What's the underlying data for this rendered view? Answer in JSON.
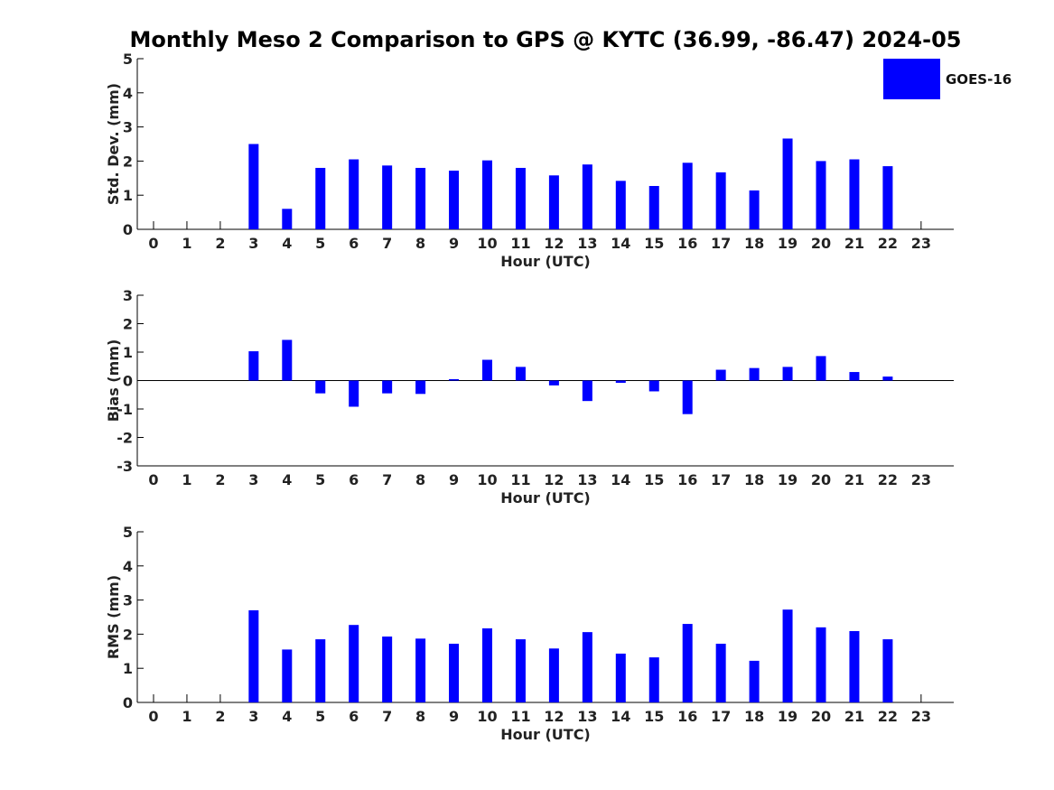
{
  "figure_title": "Monthly Meso 2 Comparison to GPS @ KYTC (36.99, -86.47) 2024-05",
  "legend": {
    "label": "GOES-16",
    "color": "#0000ff"
  },
  "chart_data": [
    {
      "type": "bar",
      "ylabel": "Std. Dev. (mm)",
      "xlabel": "Hour (UTC)",
      "ylim": [
        0,
        5
      ],
      "yticks": [
        0,
        1,
        2,
        3,
        4,
        5
      ],
      "categories": [
        "0",
        "1",
        "2",
        "3",
        "4",
        "5",
        "6",
        "7",
        "8",
        "9",
        "10",
        "11",
        "12",
        "13",
        "14",
        "15",
        "16",
        "17",
        "18",
        "19",
        "20",
        "21",
        "22",
        "23"
      ],
      "series": [
        {
          "name": "GOES-16",
          "color": "#0000ff",
          "values": [
            null,
            null,
            null,
            2.5,
            0.6,
            1.8,
            2.05,
            1.87,
            1.8,
            1.72,
            2.02,
            1.8,
            1.58,
            1.9,
            1.42,
            1.27,
            1.95,
            1.67,
            1.14,
            2.66,
            2.0,
            2.05,
            1.85,
            null
          ]
        }
      ]
    },
    {
      "type": "bar",
      "ylabel": "Bias (mm)",
      "xlabel": "Hour (UTC)",
      "ylim": [
        -3,
        3
      ],
      "yticks": [
        -3,
        -2,
        -1,
        0,
        1,
        2,
        3
      ],
      "baseline": 0,
      "categories": [
        "0",
        "1",
        "2",
        "3",
        "4",
        "5",
        "6",
        "7",
        "8",
        "9",
        "10",
        "11",
        "12",
        "13",
        "14",
        "15",
        "16",
        "17",
        "18",
        "19",
        "20",
        "21",
        "22",
        "23"
      ],
      "series": [
        {
          "name": "GOES-16",
          "color": "#0000ff",
          "values": [
            null,
            null,
            null,
            1.03,
            1.43,
            -0.45,
            -0.92,
            -0.45,
            -0.47,
            0.05,
            0.73,
            0.48,
            -0.17,
            -0.72,
            -0.08,
            -0.38,
            -1.18,
            0.38,
            0.44,
            0.48,
            0.86,
            0.3,
            0.14,
            null
          ]
        }
      ]
    },
    {
      "type": "bar",
      "ylabel": "RMS (mm)",
      "xlabel": "Hour (UTC)",
      "ylim": [
        0,
        5
      ],
      "yticks": [
        0,
        1,
        2,
        3,
        4,
        5
      ],
      "categories": [
        "0",
        "1",
        "2",
        "3",
        "4",
        "5",
        "6",
        "7",
        "8",
        "9",
        "10",
        "11",
        "12",
        "13",
        "14",
        "15",
        "16",
        "17",
        "18",
        "19",
        "20",
        "21",
        "22",
        "23"
      ],
      "series": [
        {
          "name": "GOES-16",
          "color": "#0000ff",
          "values": [
            null,
            null,
            null,
            2.7,
            1.55,
            1.85,
            2.27,
            1.93,
            1.87,
            1.72,
            2.17,
            1.85,
            1.58,
            2.06,
            1.43,
            1.32,
            2.3,
            1.72,
            1.22,
            2.72,
            2.2,
            2.09,
            1.85,
            null
          ]
        }
      ]
    }
  ]
}
